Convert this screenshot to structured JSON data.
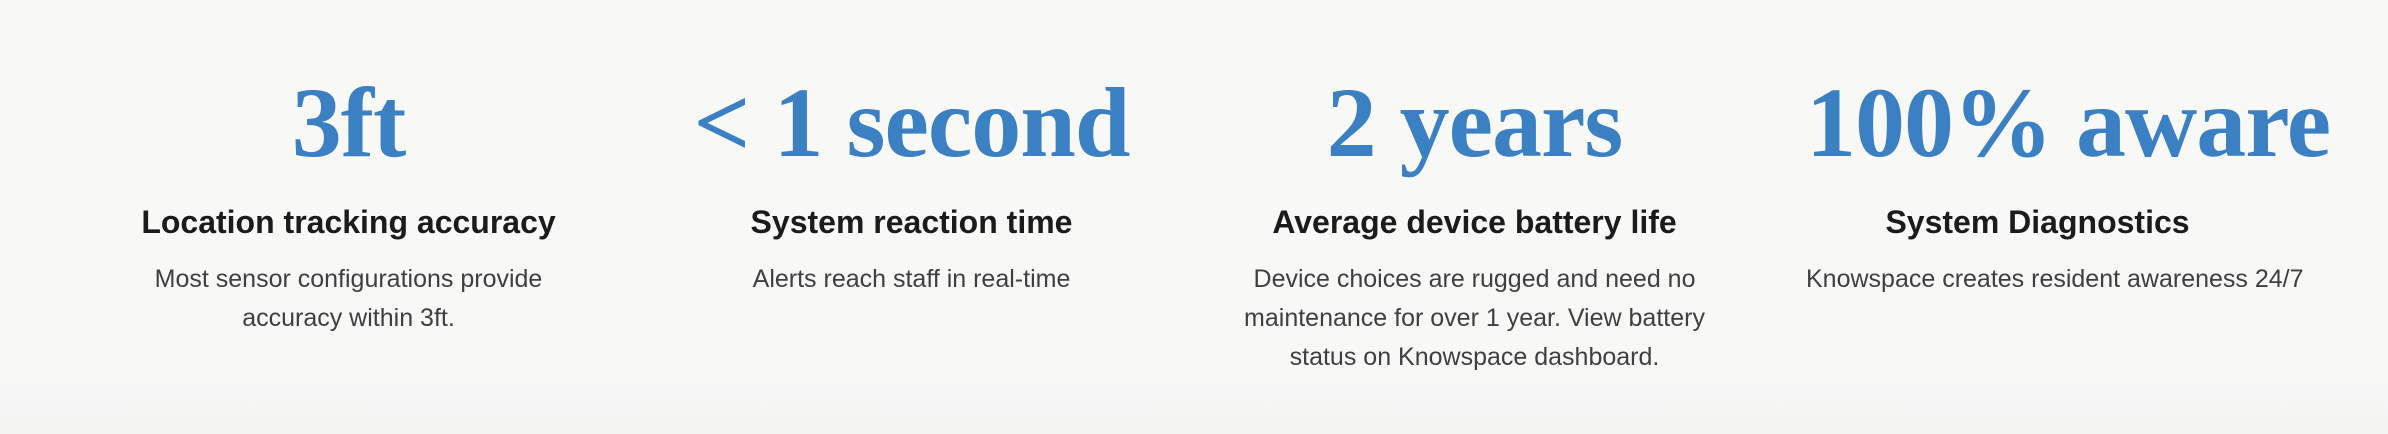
{
  "stats": [
    {
      "value": "3ft",
      "title": "Location tracking accuracy",
      "description": "Most sensor configurations provide accuracy within 3ft."
    },
    {
      "value": "< 1 second",
      "title": "System reaction time",
      "description": "Alerts reach staff in real-time"
    },
    {
      "value": "2 years",
      "title": "Average device battery life",
      "description": "Device choices are rugged and need no maintenance for over 1 year.  View battery status on Knowspace dashboard."
    },
    {
      "value": "100% aware",
      "title": "System Diagnostics",
      "description": "Knowspace creates resident awareness 24/7"
    }
  ],
  "colors": {
    "accent": "#3a80c2",
    "title": "#1b1b1b",
    "body": "#3f3f3f",
    "background": "#f8f8f7"
  }
}
